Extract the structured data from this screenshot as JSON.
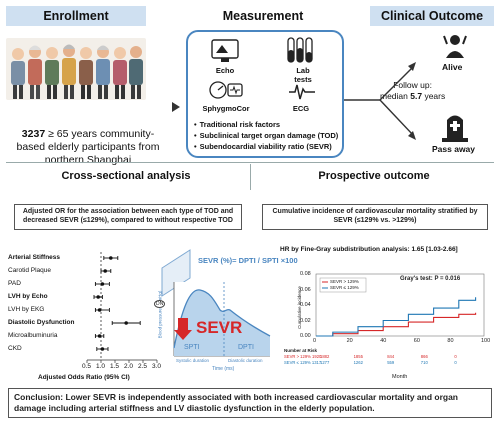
{
  "headers": {
    "enrollment": "Enrollment",
    "measurement": "Measurement",
    "clinical_outcome": "Clinical Outcome"
  },
  "enrollment": {
    "count": "3237",
    "text": " ≥ 65 years community-based elderly participants from northern Shanghai"
  },
  "measurement": {
    "icons": [
      "Echo",
      "Lab tests",
      "SphygmoCor",
      "ECG"
    ],
    "bullets": [
      "Traditional risk factors",
      "Subclinical target organ damage (TOD)",
      "Subendocardial  viability ratio (SEVR)"
    ]
  },
  "followup": {
    "line1": "Follow up:",
    "line2_prefix": "median ",
    "value": "5.7",
    "line2_suffix": " years"
  },
  "outcomes": {
    "alive": "Alive",
    "pass_away": "Pass away"
  },
  "sections": {
    "cross_sectional": "Cross-sectional analysis",
    "prospective": "Prospective outcome",
    "cross_desc": "Adjusted OR for the association between each type of TOD and decreased SEVR (≤129%), compared to without respective TOD",
    "prosp_desc": "Cumulative incidence of cardiovascular mortality stratified by SEVR (≤129% vs. >129%)"
  },
  "forest": {
    "rows": [
      {
        "label": "Arterial Stiffness",
        "bold": true,
        "or": 1.35,
        "lo": 1.1,
        "hi": 1.6
      },
      {
        "label": "Carotid Plaque",
        "bold": false,
        "or": 1.15,
        "lo": 1.0,
        "hi": 1.35
      },
      {
        "label": "PAD",
        "bold": false,
        "or": 1.05,
        "lo": 0.8,
        "hi": 1.3
      },
      {
        "label": "LVH by Echo",
        "bold": true,
        "or": 0.9,
        "lo": 0.75,
        "hi": 1.05
      },
      {
        "label": "LVH by EKG",
        "bold": false,
        "or": 0.95,
        "lo": 0.8,
        "hi": 1.3
      },
      {
        "label": "Diastolic Dysfunction",
        "bold": true,
        "or": 1.9,
        "lo": 1.4,
        "hi": 2.4
      },
      {
        "label": "Microalbuminuria",
        "bold": false,
        "or": 0.95,
        "lo": 0.8,
        "hi": 1.1
      },
      {
        "label": "CKD",
        "bold": false,
        "or": 1.05,
        "lo": 0.85,
        "hi": 1.25
      }
    ],
    "ticks": [
      "0.5",
      "1.0",
      "1.5",
      "2.0",
      "2.5",
      "3.0"
    ],
    "xlabel": "Adjusted Odds Ratio (95% CI)"
  },
  "sevr_diagram": {
    "formula": "SEVR (%)= DPTI / SPTI ×100",
    "big_label": "SEVR",
    "spti": "SPTI",
    "dpti": "DPTI",
    "systolic": "Systolic duration",
    "diastolic": "Diastolic duration",
    "ylabel": "Blood pressure (mmHg)",
    "xlabel": "Time (ms)",
    "notch": "DN"
  },
  "km": {
    "title": "HR by Fine-Gray subdistribution analysis: 1.65 [1.03-2.66]",
    "legend": [
      "SEVR > 129%",
      "SEVR ≤ 129%"
    ],
    "gray_test": "Gray's test: P = 0.016",
    "ylabel": "Cumulative incidence",
    "xlabel": "Month",
    "ticks_x": [
      "0",
      "20",
      "40",
      "60",
      "80",
      "100"
    ],
    "ticks_y": [
      "0.00",
      "0.02",
      "0.04",
      "0.06",
      "0.08"
    ],
    "risk_title": "Number at Risk",
    "risk_rows": [
      {
        "label": "SEVR > 129% 1920",
        "values": [
          "1882",
          "1855",
          "844",
          "866",
          "0"
        ]
      },
      {
        "label": "SEVR ≤ 129% 1317",
        "values": [
          "1277",
          "1262",
          "559",
          "710",
          "0"
        ]
      }
    ],
    "colors": {
      "high": "#d62728",
      "low": "#1f77b4"
    }
  },
  "conclusion": "Conclusion: Lower SEVR is independently associated with both increased cardiovascular mortality and organ damage including arterial stiffness and LV diastolic dysfunction in the elderly population."
}
